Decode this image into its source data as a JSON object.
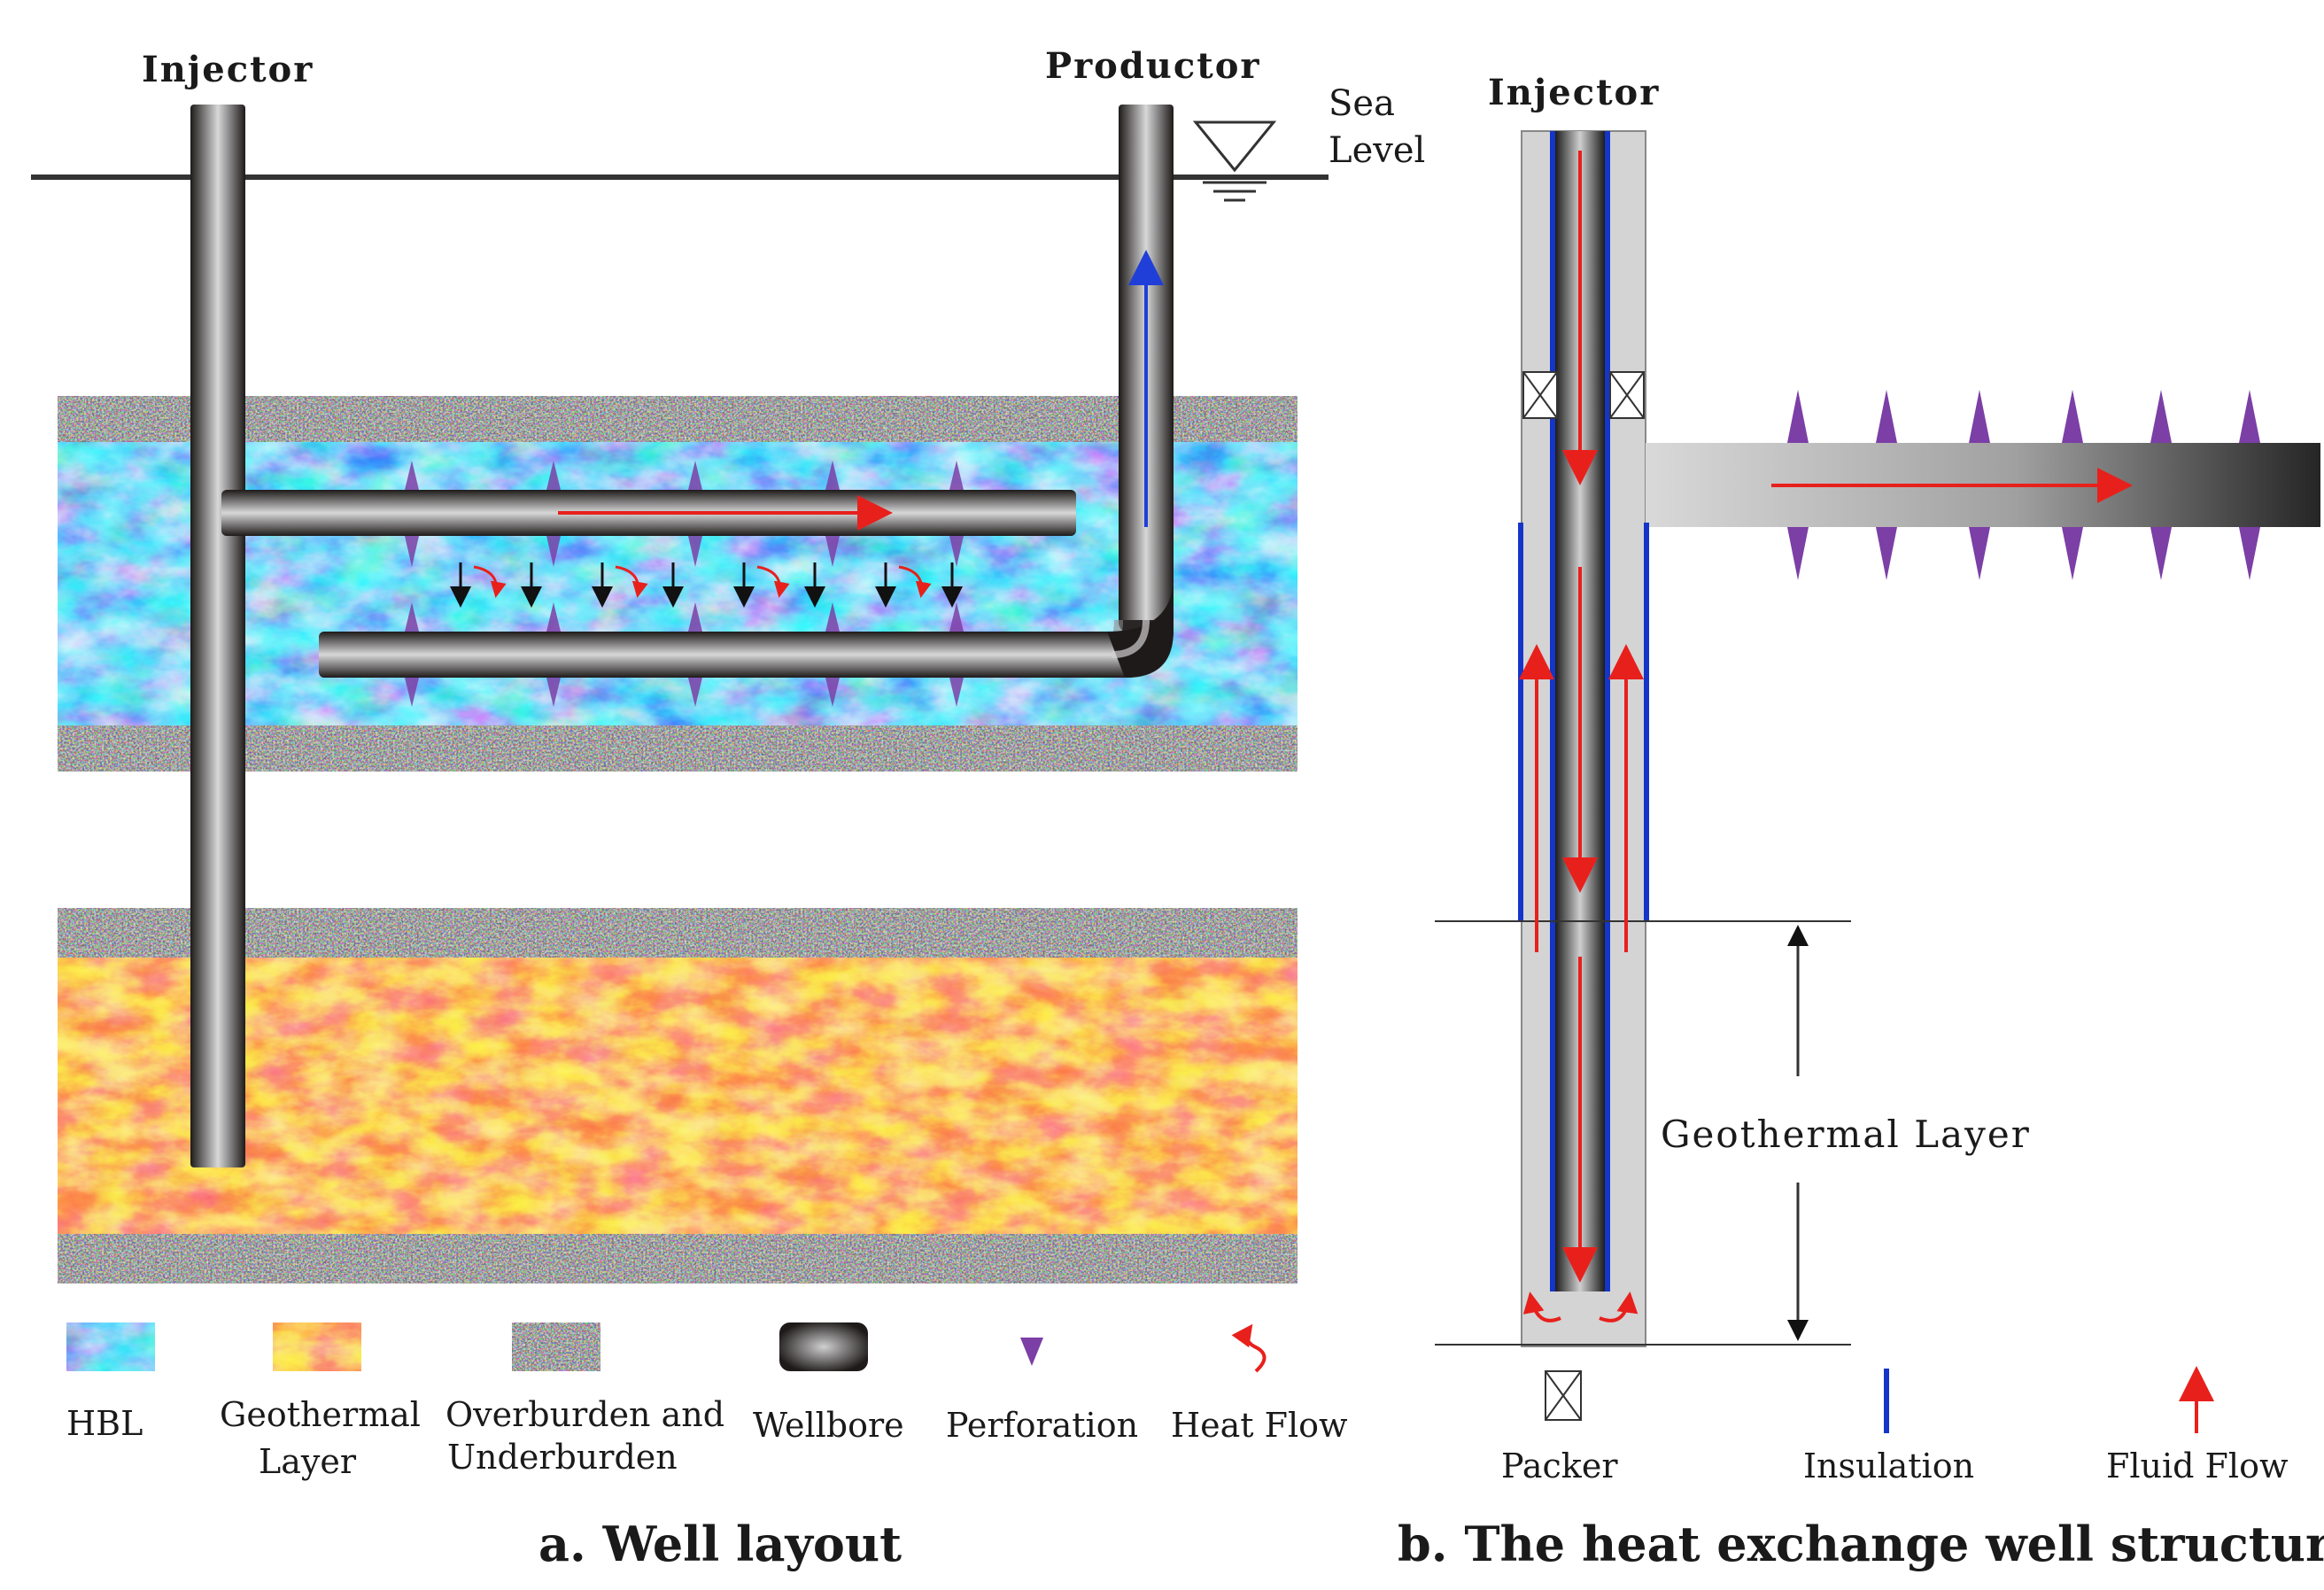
{
  "panel_a": {
    "injector_label": "Injector",
    "productor_label": "Productor",
    "sea_label": "Sea",
    "level_label": "Level",
    "caption": "a. Well layout",
    "legend": {
      "hbl": "HBL",
      "geothermal_1": "Geothermal",
      "geothermal_2": "Layer",
      "overburden_1": "Overburden  and",
      "overburden_2": "Underburden",
      "wellbore": "Wellbore",
      "perforation": "Perforation",
      "heat_flow": "Heat Flow"
    }
  },
  "panel_b": {
    "injector_label": "Injector",
    "geothermal_layer_label": "Geothermal  Layer",
    "caption": "b. The heat exchange well structure",
    "legend": {
      "packer": "Packer",
      "insulation": "Insulation",
      "fluid_flow": "Fluid Flow"
    }
  },
  "colors": {
    "hbl_light": "#39c5f0",
    "hbl_dark": "#0a2e9c",
    "geo_red": "#f23a14",
    "geo_yellow": "#f9e24a",
    "overburden_dark": "#262626",
    "pipe_dark": "#1e1a1a",
    "perforation": "#7b3fa6",
    "flow_red": "#e8201c",
    "flow_blue": "#1f3fd8",
    "insulation": "#1535c8"
  }
}
